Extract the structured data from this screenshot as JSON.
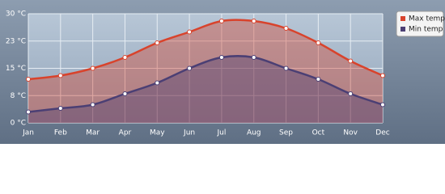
{
  "chart_data": {
    "type": "area",
    "categories": [
      "Jan",
      "Feb",
      "Mar",
      "Apr",
      "May",
      "Jun",
      "Jul",
      "Aug",
      "Sep",
      "Oct",
      "Nov",
      "Dec"
    ],
    "series": [
      {
        "name": "Max temp",
        "color": "#d8432c",
        "values": [
          12,
          13,
          15,
          18,
          22,
          25,
          28,
          28,
          26,
          22,
          17,
          13
        ]
      },
      {
        "name": "Min temp",
        "color": "#4b3f74",
        "values": [
          3,
          4,
          5,
          8,
          11,
          15,
          18,
          18,
          15,
          12,
          8,
          5
        ]
      }
    ],
    "ylim": [
      0,
      30
    ],
    "yticks": [
      {
        "value": 0,
        "label": "0 °C"
      },
      {
        "value": 7.5,
        "label": "8 °C"
      },
      {
        "value": 15,
        "label": "15 °C"
      },
      {
        "value": 22.5,
        "label": "23 °C"
      },
      {
        "value": 30,
        "label": "30 °C"
      }
    ],
    "grid": true,
    "legend": "top-right"
  }
}
